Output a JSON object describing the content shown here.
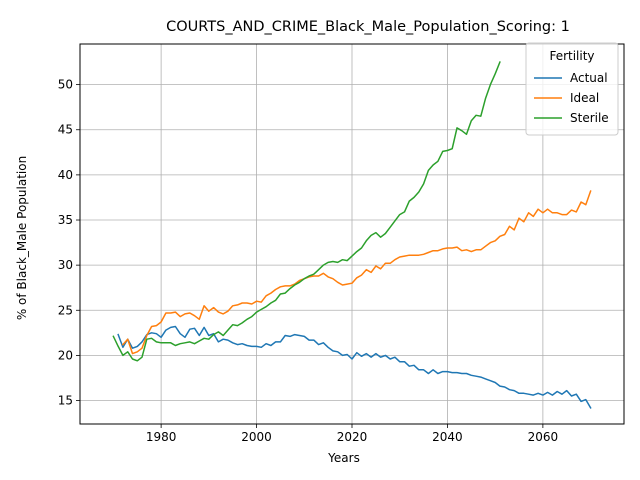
{
  "chart_data": {
    "type": "line",
    "title": "COURTS_AND_CRIME_Black_Male_Population_Scoring: 1",
    "xlabel": "Years",
    "ylabel": "% of Black_Male Population",
    "xlim": [
      1963,
      2077
    ],
    "ylim": [
      12.4,
      54.5
    ],
    "x_ticks": [
      1980,
      2000,
      2020,
      2040,
      2060
    ],
    "y_ticks": [
      15,
      20,
      25,
      30,
      35,
      40,
      45,
      50
    ],
    "grid": true,
    "legend": {
      "title": "Fertility",
      "placement": "top-right"
    },
    "series": [
      {
        "name": "Actual",
        "color": "#1f77b4",
        "x": [
          1971,
          1972,
          1973,
          1974,
          1975,
          1976,
          1977,
          1978,
          1979,
          1980,
          1981,
          1982,
          1983,
          1984,
          1985,
          1986,
          1987,
          1988,
          1989,
          1990,
          1991,
          1992,
          1993,
          1994,
          1995,
          1996,
          1997,
          1998,
          1999,
          2000,
          2001,
          2002,
          2003,
          2004,
          2005,
          2006,
          2007,
          2008,
          2009,
          2010,
          2011,
          2012,
          2013,
          2014,
          2015,
          2016,
          2017,
          2018,
          2019,
          2020,
          2021,
          2022,
          2023,
          2024,
          2025,
          2026,
          2027,
          2028,
          2029,
          2030,
          2031,
          2032,
          2033,
          2034,
          2035,
          2036,
          2037,
          2038,
          2039,
          2040,
          2041,
          2042,
          2043,
          2044,
          2045,
          2046,
          2047,
          2048,
          2049,
          2050,
          2051,
          2052,
          2053,
          2054,
          2055,
          2056,
          2057,
          2058,
          2059,
          2060,
          2061,
          2062,
          2063,
          2064,
          2065,
          2066,
          2067,
          2068,
          2069,
          2070
        ],
        "values": [
          22.3,
          20.9,
          21.8,
          20.8,
          21.0,
          21.5,
          22.3,
          22.5,
          22.4,
          22.0,
          22.8,
          23.1,
          23.2,
          22.4,
          22.0,
          22.9,
          23.0,
          22.2,
          23.1,
          22.2,
          22.4,
          21.5,
          21.8,
          21.7,
          21.4,
          21.2,
          21.3,
          21.1,
          21.0,
          21.0,
          20.9,
          21.3,
          21.1,
          21.5,
          21.5,
          22.2,
          22.1,
          22.3,
          22.2,
          22.1,
          21.7,
          21.7,
          21.2,
          21.4,
          20.9,
          20.5,
          20.4,
          20.0,
          20.1,
          19.6,
          20.3,
          19.9,
          20.2,
          19.8,
          20.2,
          19.8,
          20.0,
          19.6,
          19.8,
          19.3,
          19.3,
          18.8,
          18.9,
          18.4,
          18.4,
          18.0,
          18.4,
          18.0,
          18.2,
          18.2,
          18.1,
          18.1,
          18.0,
          18.0,
          17.8,
          17.7,
          17.6,
          17.4,
          17.2,
          17.0,
          16.6,
          16.5,
          16.2,
          16.1,
          15.8,
          15.8,
          15.7,
          15.6,
          15.8,
          15.6,
          15.9,
          15.6,
          16.0,
          15.7,
          16.1,
          15.5,
          15.7,
          14.9,
          15.1,
          14.2
        ]
      },
      {
        "name": "Ideal",
        "color": "#ff7f0e",
        "x": [
          1972,
          1973,
          1974,
          1975,
          1976,
          1977,
          1978,
          1979,
          1980,
          1981,
          1982,
          1983,
          1984,
          1985,
          1986,
          1987,
          1988,
          1989,
          1990,
          1991,
          1992,
          1993,
          1994,
          1995,
          1996,
          1997,
          1998,
          1999,
          2000,
          2001,
          2002,
          2003,
          2004,
          2005,
          2006,
          2007,
          2008,
          2009,
          2010,
          2011,
          2012,
          2013,
          2014,
          2015,
          2016,
          2017,
          2018,
          2019,
          2020,
          2021,
          2022,
          2023,
          2024,
          2025,
          2026,
          2027,
          2028,
          2029,
          2030,
          2031,
          2032,
          2033,
          2034,
          2035,
          2036,
          2037,
          2038,
          2039,
          2040,
          2041,
          2042,
          2043,
          2044,
          2045,
          2046,
          2047,
          2048,
          2049,
          2050,
          2051,
          2052,
          2053,
          2054,
          2055,
          2056,
          2057,
          2058,
          2059,
          2060,
          2061,
          2062,
          2063,
          2064,
          2065,
          2066,
          2067,
          2068,
          2069,
          2070
        ],
        "values": [
          21.2,
          21.8,
          20.2,
          20.4,
          20.8,
          22.2,
          23.2,
          23.3,
          23.7,
          24.7,
          24.7,
          24.8,
          24.3,
          24.6,
          24.7,
          24.4,
          24.0,
          25.5,
          24.9,
          25.3,
          24.8,
          24.6,
          24.9,
          25.5,
          25.6,
          25.8,
          25.8,
          25.7,
          26.0,
          25.9,
          26.6,
          26.9,
          27.3,
          27.6,
          27.7,
          27.7,
          27.9,
          28.3,
          28.5,
          28.7,
          28.8,
          28.8,
          29.1,
          28.7,
          28.5,
          28.1,
          27.8,
          27.9,
          28.0,
          28.6,
          28.9,
          29.5,
          29.2,
          29.9,
          29.6,
          30.2,
          30.2,
          30.6,
          30.9,
          31.0,
          31.1,
          31.1,
          31.1,
          31.2,
          31.4,
          31.6,
          31.6,
          31.8,
          31.9,
          31.9,
          32.0,
          31.6,
          31.7,
          31.5,
          31.7,
          31.7,
          32.1,
          32.5,
          32.7,
          33.2,
          33.4,
          34.3,
          33.9,
          35.2,
          34.8,
          35.8,
          35.4,
          36.2,
          35.8,
          36.2,
          35.8,
          35.8,
          35.6,
          35.6,
          36.1,
          35.9,
          37.0,
          36.7,
          38.2
        ]
      },
      {
        "name": "Sterile",
        "color": "#2ca02c",
        "x": [
          1970,
          1971,
          1972,
          1973,
          1974,
          1975,
          1976,
          1977,
          1978,
          1979,
          1980,
          1981,
          1982,
          1983,
          1984,
          1985,
          1986,
          1987,
          1988,
          1989,
          1990,
          1991,
          1992,
          1993,
          1994,
          1995,
          1996,
          1997,
          1998,
          1999,
          2000,
          2001,
          2002,
          2003,
          2004,
          2005,
          2006,
          2007,
          2008,
          2009,
          2010,
          2011,
          2012,
          2013,
          2014,
          2015,
          2016,
          2017,
          2018,
          2019,
          2020,
          2021,
          2022,
          2023,
          2024,
          2025,
          2026,
          2027,
          2028,
          2029,
          2030,
          2031,
          2032,
          2033,
          2034,
          2035,
          2036,
          2037,
          2038,
          2039,
          2040,
          2041,
          2042,
          2043,
          2044,
          2045,
          2046,
          2047,
          2048,
          2049,
          2050,
          2051
        ],
        "values": [
          22.1,
          21.0,
          20.0,
          20.4,
          19.6,
          19.4,
          19.8,
          21.8,
          21.9,
          21.5,
          21.4,
          21.4,
          21.4,
          21.1,
          21.3,
          21.4,
          21.5,
          21.3,
          21.6,
          21.9,
          21.8,
          22.3,
          22.6,
          22.2,
          22.8,
          23.4,
          23.3,
          23.6,
          24.0,
          24.3,
          24.8,
          25.1,
          25.4,
          25.8,
          26.1,
          26.8,
          26.9,
          27.4,
          27.8,
          28.1,
          28.5,
          28.8,
          29.0,
          29.5,
          30.0,
          30.3,
          30.4,
          30.3,
          30.6,
          30.5,
          31.0,
          31.5,
          31.9,
          32.7,
          33.3,
          33.6,
          33.1,
          33.5,
          34.2,
          34.9,
          35.6,
          35.9,
          37.1,
          37.5,
          38.1,
          39.0,
          40.5,
          41.1,
          41.5,
          42.6,
          42.7,
          42.9,
          45.2,
          44.9,
          44.5,
          46.0,
          46.6,
          46.5,
          48.5,
          50.0,
          51.2,
          52.5
        ]
      }
    ]
  }
}
